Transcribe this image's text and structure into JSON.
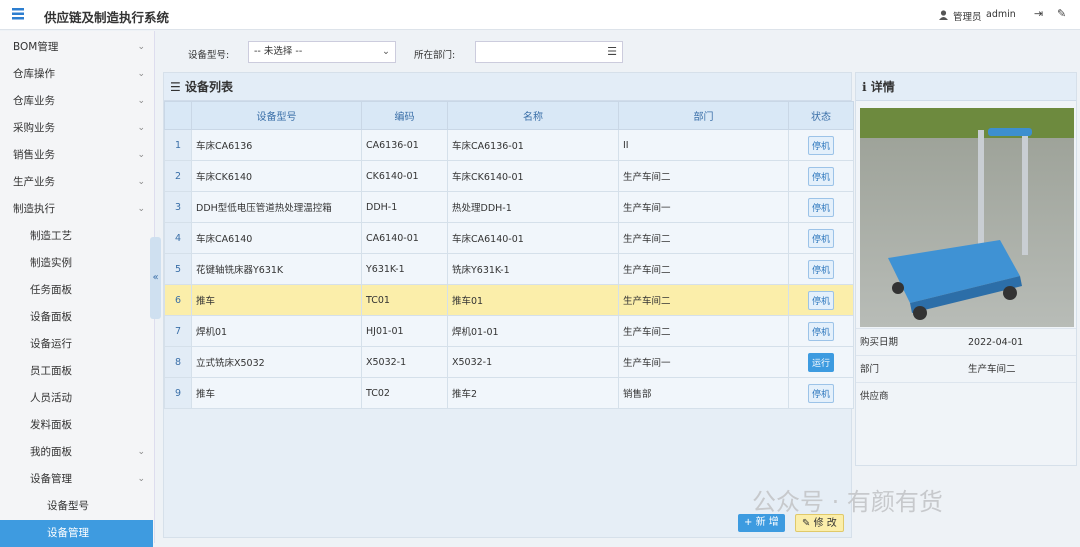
{
  "header": {
    "title": "供应链及制造执行系统",
    "role": "管理员",
    "user": "admin"
  },
  "sidebar": [
    {
      "label": "BOM管理",
      "level": 0,
      "arrow": true
    },
    {
      "label": "仓库操作",
      "level": 0,
      "arrow": true
    },
    {
      "label": "仓库业务",
      "level": 0,
      "arrow": true
    },
    {
      "label": "采购业务",
      "level": 0,
      "arrow": true
    },
    {
      "label": "销售业务",
      "level": 0,
      "arrow": true
    },
    {
      "label": "生产业务",
      "level": 0,
      "arrow": true
    },
    {
      "label": "制造执行",
      "level": 0,
      "arrow": true
    },
    {
      "label": "制造工艺",
      "level": 1
    },
    {
      "label": "制造实例",
      "level": 1
    },
    {
      "label": "任务面板",
      "level": 1
    },
    {
      "label": "设备面板",
      "level": 1
    },
    {
      "label": "设备运行",
      "level": 1
    },
    {
      "label": "员工面板",
      "level": 1
    },
    {
      "label": "人员活动",
      "level": 1
    },
    {
      "label": "发料面板",
      "level": 1
    },
    {
      "label": "我的面板",
      "level": 1,
      "arrow": true
    },
    {
      "label": "设备管理",
      "level": 1,
      "arrow": true
    },
    {
      "label": "设备型号",
      "level": 2
    },
    {
      "label": "设备管理",
      "level": 2,
      "active": true
    }
  ],
  "filters": {
    "model_label": "设备型号:",
    "model_value": "-- 未选择 --",
    "dept_label": "所在部门:"
  },
  "list": {
    "title": "设备列表",
    "columns": [
      "设备型号",
      "编码",
      "名称",
      "部门",
      "状态"
    ],
    "rows": [
      [
        "1",
        "车床CA6136",
        "CA6136-01",
        "车床CA6136-01",
        "II",
        "停机"
      ],
      [
        "2",
        "车床CK6140",
        "CK6140-01",
        "车床CK6140-01",
        "生产车间二",
        "停机"
      ],
      [
        "3",
        "DDH型低电压管道热处理温控箱",
        "DDH-1",
        "热处理DDH-1",
        "生产车间一",
        "停机"
      ],
      [
        "4",
        "车床CA6140",
        "CA6140-01",
        "车床CA6140-01",
        "生产车间二",
        "停机"
      ],
      [
        "5",
        "花键轴铣床器Y631K",
        "Y631K-1",
        "铣床Y631K-1",
        "生产车间二",
        "停机"
      ],
      [
        "6",
        "推车",
        "TC01",
        "推车01",
        "生产车间二",
        "停机"
      ],
      [
        "7",
        "焊机01",
        "HJ01-01",
        "焊机01-01",
        "生产车间二",
        "停机"
      ],
      [
        "8",
        "立式铣床X5032",
        "X5032-1",
        "X5032-1",
        "生产车间一",
        "运行"
      ],
      [
        "9",
        "推车",
        "TC02",
        "推车2",
        "销售部",
        "停机"
      ]
    ],
    "highlighted_row": 5
  },
  "detail": {
    "title": "详情",
    "fields": [
      {
        "label": "购买日期",
        "value": "2022-04-01"
      },
      {
        "label": "部门",
        "value": "生产车间二"
      },
      {
        "label": "供应商"
      }
    ]
  },
  "buttons": [
    "新 增",
    "修 改"
  ],
  "watermark": "公众号 · 有颜有货"
}
